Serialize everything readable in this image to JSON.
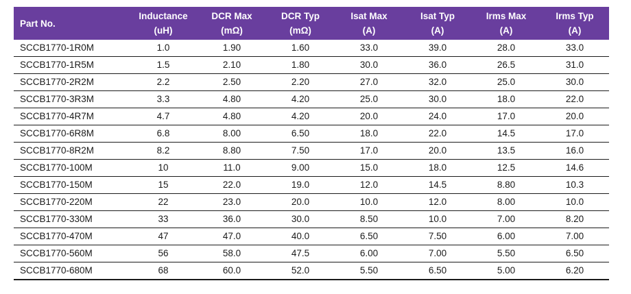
{
  "table": {
    "columns": [
      {
        "label": "Part No.",
        "unit": ""
      },
      {
        "label": "Inductance",
        "unit": "(uH)"
      },
      {
        "label": "DCR Max",
        "unit": "(mΩ)"
      },
      {
        "label": "DCR Typ",
        "unit": "(mΩ)"
      },
      {
        "label": "Isat Max",
        "unit": "(A)"
      },
      {
        "label": "Isat Typ",
        "unit": "(A)"
      },
      {
        "label": "Irms Max",
        "unit": "(A)"
      },
      {
        "label": "Irms Typ",
        "unit": "(A)"
      }
    ],
    "rows": [
      [
        "SCCB1770-1R0M",
        "1.0",
        "1.90",
        "1.60",
        "33.0",
        "39.0",
        "28.0",
        "33.0"
      ],
      [
        "SCCB1770-1R5M",
        "1.5",
        "2.10",
        "1.80",
        "30.0",
        "36.0",
        "26.5",
        "31.0"
      ],
      [
        "SCCB1770-2R2M",
        "2.2",
        "2.50",
        "2.20",
        "27.0",
        "32.0",
        "25.0",
        "30.0"
      ],
      [
        "SCCB1770-3R3M",
        "3.3",
        "4.80",
        "4.20",
        "25.0",
        "30.0",
        "18.0",
        "22.0"
      ],
      [
        "SCCB1770-4R7M",
        "4.7",
        "4.80",
        "4.20",
        "20.0",
        "24.0",
        "17.0",
        "20.0"
      ],
      [
        "SCCB1770-6R8M",
        "6.8",
        "8.00",
        "6.50",
        "18.0",
        "22.0",
        "14.5",
        "17.0"
      ],
      [
        "SCCB1770-8R2M",
        "8.2",
        "8.80",
        "7.50",
        "17.0",
        "20.0",
        "13.5",
        "16.0"
      ],
      [
        "SCCB1770-100M",
        "10",
        "11.0",
        "9.00",
        "15.0",
        "18.0",
        "12.5",
        "14.6"
      ],
      [
        "SCCB1770-150M",
        "15",
        "22.0",
        "19.0",
        "12.0",
        "14.5",
        "8.80",
        "10.3"
      ],
      [
        "SCCB1770-220M",
        "22",
        "23.0",
        "20.0",
        "10.0",
        "12.0",
        "8.00",
        "10.0"
      ],
      [
        "SCCB1770-330M",
        "33",
        "36.0",
        "30.0",
        "8.50",
        "10.0",
        "7.00",
        "8.20"
      ],
      [
        "SCCB1770-470M",
        "47",
        "47.0",
        "40.0",
        "6.50",
        "7.50",
        "6.00",
        "7.00"
      ],
      [
        "SCCB1770-560M",
        "56",
        "58.0",
        "47.5",
        "6.00",
        "7.00",
        "5.50",
        "6.50"
      ],
      [
        "SCCB1770-680M",
        "68",
        "60.0",
        "52.0",
        "5.50",
        "6.50",
        "5.00",
        "6.20"
      ]
    ],
    "colors": {
      "header_bg": "#693E9E",
      "header_text": "#FFFFFF",
      "body_text": "#1A1A1A",
      "row_border": "#1A1A1A"
    }
  }
}
